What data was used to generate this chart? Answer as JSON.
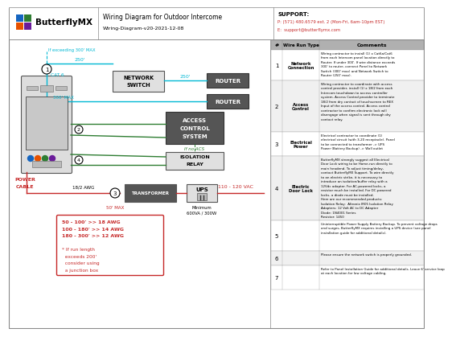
{
  "title": "Wiring Diagram for Outdoor Intercome",
  "subtitle": "Wiring-Diagram-v20-2021-12-08",
  "support_title": "SUPPORT:",
  "support_phone": "P: (571) 480.6579 ext. 2 (Mon-Fri, 6am-10pm EST)",
  "support_email": "E:  support@butterflymx.com",
  "logo_text": "ButterflyMX",
  "cyan": "#00b8d4",
  "green": "#2e7d32",
  "red": "#c62828",
  "dark_box": "#555555",
  "light_box": "#e0e0e0",
  "table_hdr_bg": "#b0b0b0",
  "bg": "#ffffff",
  "row_bg": [
    "#ffffff",
    "#f0f0f0",
    "#ffffff",
    "#f0f0f0",
    "#ffffff",
    "#f0f0f0",
    "#ffffff"
  ],
  "rows": [
    {
      "num": "1",
      "type": "Network\nConnection",
      "comment": "Wiring contractor to install (1) x Cat6a/Cat6\nfrom each Intercom panel location directly to\nRouter. If under 300'. If wire distance exceeds\n300' to router, connect Panel to Network\nSwitch (300' max) and Network Switch to\nRouter (250' max)."
    },
    {
      "num": "2",
      "type": "Access\nControl",
      "comment": "Wiring contractor to coordinate with access\ncontrol provider, install (1) x 18/2 from each\nIntercom touchdown to access controller\nsystem. Access Control provider to terminate\n18/2 from dry contact of touchscreen to REX\nInput of the access control. Access control\ncontractor to confirm electronic lock will\ndisengage when signal is sent through dry\ncontact relay."
    },
    {
      "num": "3",
      "type": "Electrical\nPower",
      "comment": "Electrical contractor to coordinate (1)\nelectrical circuit (with 3-20 receptacle). Panel\nto be connected to transformer -> UPS\nPower (Battery Backup) -> Wall outlet"
    },
    {
      "num": "4",
      "type": "Electric\nDoor Lock",
      "comment": "ButterflyMX strongly suggest all Electrical\nDoor Lock wiring to be Home-run directly to\nmain headend. To adjust timing/delay,\ncontact ButterflyMX Support. To wire directly\nto an electric strike, it is necessary to\nintroduce an isolation/buffer relay with a\n12Vdc adapter. For AC-powered locks, a\nresistor much be installed. For DC-powered\nlocks, a diode must be installed.\nHere are our recommended products:\nIsolation Relay:  Altronix IR05 Isolation Relay\nAdapters: 12 Volt AC to DC Adapter\nDiode: 1N4001 Series\nResistor: 1450"
    },
    {
      "num": "5",
      "type": "",
      "comment": "Uninterruptible Power Supply Battery Backup. To prevent voltage drops\nand surges, ButterflyMX requires installing a UPS device (see panel\ninstallation guide for additional details)."
    },
    {
      "num": "6",
      "type": "",
      "comment": "Please ensure the network switch is properly grounded."
    },
    {
      "num": "7",
      "type": "",
      "comment": "Refer to Panel Installation Guide for additional details. Leave 6' service loop\nat each location for low voltage cabling."
    }
  ],
  "awg_lines": [
    "50 - 100' >> 18 AWG",
    "100 - 180' >> 14 AWG",
    "180 - 300' >> 12 AWG",
    "",
    "* If run length",
    "  exceeds 200'",
    "  consider using",
    "  a junction box"
  ]
}
